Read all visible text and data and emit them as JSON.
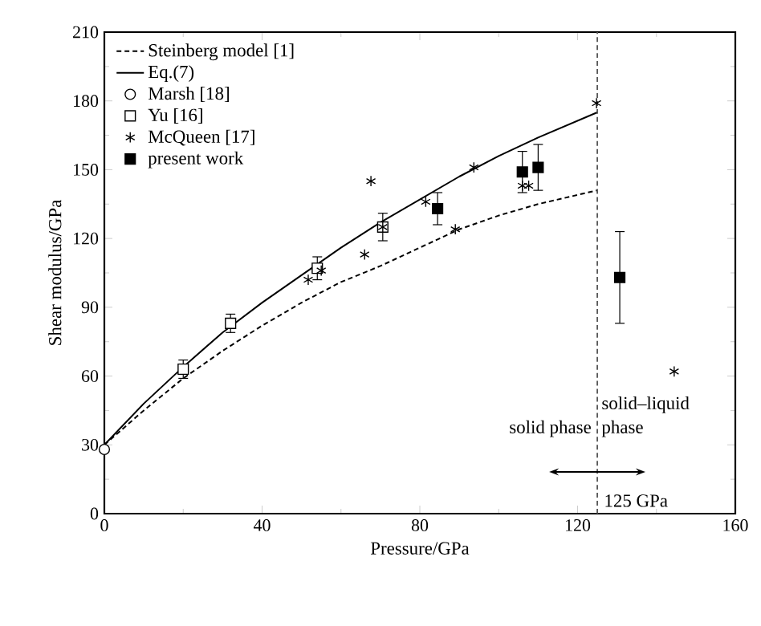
{
  "chart_data": {
    "type": "scatter",
    "xlabel": "Pressure/GPa",
    "ylabel": "Shear modulus/GPa",
    "xlim": [
      0,
      160
    ],
    "ylim": [
      0,
      210
    ],
    "xticks": [
      0,
      40,
      80,
      120,
      160
    ],
    "yticks": [
      0,
      30,
      60,
      90,
      120,
      150,
      180,
      210
    ],
    "legend": "top left",
    "grid": false,
    "series": [
      {
        "name": "Steinberg model [1]",
        "type": "line",
        "line_style": "dashed",
        "marker": "none",
        "color": "#000000",
        "x": [
          0,
          10,
          20,
          30,
          40,
          50,
          60,
          70,
          80,
          90,
          100,
          110,
          125
        ],
        "values": [
          30,
          45,
          59,
          71,
          82,
          92,
          101,
          108,
          116,
          124,
          130,
          135,
          141
        ]
      },
      {
        "name": "Eq.(7)",
        "type": "line",
        "line_style": "solid",
        "marker": "none",
        "color": "#000000",
        "x": [
          0,
          10,
          20,
          30,
          40,
          50,
          60,
          70,
          80,
          90,
          100,
          110,
          125
        ],
        "values": [
          30,
          48,
          64,
          79,
          92,
          104,
          116,
          127,
          137,
          147,
          156,
          164,
          175
        ]
      },
      {
        "name": "Marsh [18]",
        "marker": "circle",
        "color": "#ffffff",
        "x": [
          0
        ],
        "values": [
          28
        ]
      },
      {
        "name": "Yu [16]",
        "marker": "square",
        "color": "#ffffff",
        "x": [
          20,
          32,
          54,
          70.6
        ],
        "values": [
          63,
          83,
          107,
          125
        ],
        "errors": [
          4,
          4,
          5,
          6
        ]
      },
      {
        "name": "McQueen [17]",
        "marker": "cross",
        "color": "#000000",
        "x": [
          51.7,
          55,
          66,
          67.6,
          70.6,
          81.5,
          89,
          93.7,
          106,
          107.6,
          124.8,
          144.5
        ],
        "values": [
          102,
          106,
          113,
          145,
          125,
          136,
          124,
          151,
          143,
          143,
          179,
          62
        ]
      },
      {
        "name": "present work",
        "marker": "square",
        "color": "#000000",
        "x": [
          84.5,
          106,
          110,
          130.7
        ],
        "values": [
          133,
          149,
          151,
          103
        ],
        "errors": [
          7,
          9,
          10,
          20
        ]
      }
    ],
    "ref_lines": [
      {
        "axis": "x",
        "value": 125,
        "label": "125 GPa",
        "line_style": "dashed",
        "color": "#555555"
      }
    ],
    "annotations": [
      "solid phase",
      "solid–liquid phase"
    ]
  }
}
